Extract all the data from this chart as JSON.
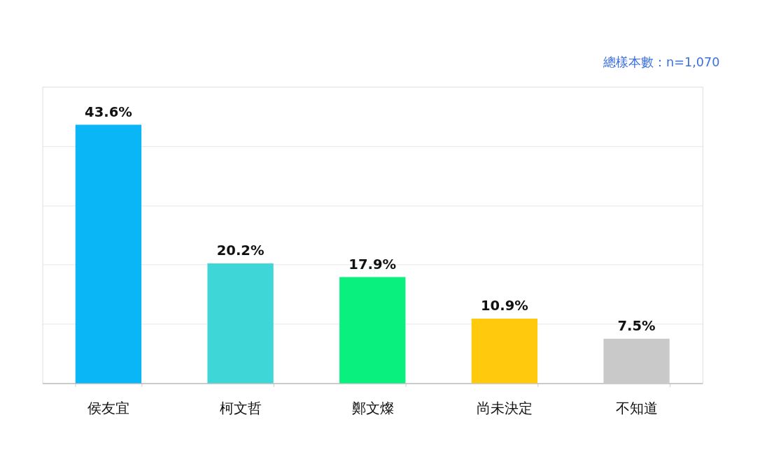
{
  "chart_data": {
    "type": "bar",
    "categories": [
      "侯友宜",
      "柯文哲",
      "鄭文燦",
      "尚未決定",
      "不知道"
    ],
    "values": [
      43.6,
      20.2,
      17.9,
      10.9,
      7.5
    ],
    "colors": [
      "#0ab6f5",
      "#3fd6d8",
      "#0af07e",
      "#ffc90d",
      "#c9c9c9"
    ],
    "value_labels": [
      "43.6%",
      "20.2%",
      "17.9%",
      "10.9%",
      "7.5%"
    ],
    "ylim": [
      0,
      50
    ],
    "yticks": [
      {
        "value": 0,
        "label": null
      },
      {
        "value": 10,
        "label": null
      },
      {
        "value": 20,
        "label": null
      },
      {
        "value": 30,
        "label": null
      },
      {
        "value": 40,
        "label": null
      },
      {
        "value": 50,
        "label": null
      }
    ],
    "tick_labels": "x",
    "grid": "y",
    "annotations": [
      "總樣本數：n=1,070"
    ]
  }
}
